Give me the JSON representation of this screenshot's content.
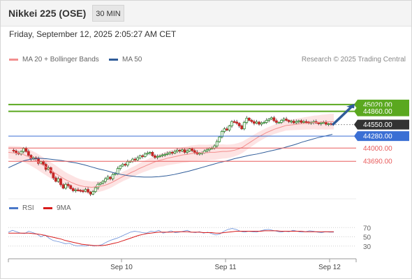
{
  "header": {
    "title": "Nikkei 225 (OSE)",
    "timeframe": "30 MIN"
  },
  "datetime": "Friday, September 12, 2025 2:05:27 AM CET",
  "legend": {
    "ma20": "MA 20 + Bollinger Bands",
    "ma50": "MA 50",
    "rsi": "RSI",
    "ma9": "9MA"
  },
  "credit": "Research © 2025 Trading Central",
  "colors": {
    "target": "#5aa81f",
    "pivot": "#3b6fd4",
    "support": "#e85c5c",
    "current": "#333333",
    "ma20": "#f28f8f",
    "ma50": "#2f5c99",
    "band": "#fde0e0",
    "up": "#2d8a2d",
    "down": "#c62828"
  },
  "chart_data": {
    "type": "candlestick",
    "levels": [
      {
        "value": 45020,
        "label": "45020.00",
        "kind": "target"
      },
      {
        "value": 44860,
        "label": "44860.00",
        "kind": "target"
      },
      {
        "value": 44550,
        "label": "44550.00",
        "kind": "current"
      },
      {
        "value": 44280,
        "label": "44280.00",
        "kind": "pivot"
      },
      {
        "value": 44000,
        "label": "44000.00",
        "kind": "support"
      },
      {
        "value": 43690,
        "label": "43690.00",
        "kind": "support"
      }
    ],
    "ylim": [
      42860,
      45900
    ],
    "x_ticks": [
      "Sep 10",
      "Sep 11",
      "Sep 12"
    ],
    "close": [
      43950,
      43930,
      43880,
      43860,
      43920,
      43990,
      43920,
      43830,
      43740,
      43770,
      43750,
      43640,
      43680,
      43620,
      43500,
      43540,
      43420,
      43300,
      43220,
      43280,
      43140,
      43060,
      43150,
      43120,
      43050,
      43000,
      43020,
      43010,
      43000,
      42990,
      43030,
      42970,
      42920,
      42980,
      43070,
      43150,
      43180,
      43220,
      43280,
      43320,
      43280,
      43380,
      43400,
      43520,
      43580,
      43620,
      43600,
      43680,
      43690,
      43740,
      43720,
      43770,
      43820,
      43800,
      43860,
      43880,
      43900,
      43820,
      43780,
      43800,
      43820,
      43840,
      43850,
      43870,
      43900,
      43880,
      43920,
      43950,
      43930,
      43960,
      43900,
      43930,
      43980,
      43940,
      43900,
      43860,
      43880,
      43890,
      43930,
      43960,
      43990,
      44000,
      44050,
      44150,
      44260,
      44390,
      44450,
      44420,
      44520,
      44620,
      44610,
      44580,
      44520,
      44450,
      44600,
      44700,
      44650,
      44620,
      44580,
      44610,
      44560,
      44590,
      44600,
      44650,
      44680,
      44710,
      44640,
      44600,
      44600,
      44650,
      44680,
      44650,
      44620,
      44630,
      44590,
      44620,
      44640,
      44600,
      44620,
      44610,
      44580,
      44600,
      44620,
      44590,
      44570,
      44590,
      44600,
      44560,
      44570,
      44550
    ],
    "ma20": [
      43900,
      43890,
      43880,
      43870,
      43840,
      43800,
      43750,
      43700,
      43640,
      43580,
      43520,
      43460,
      43400,
      43340,
      43280,
      43230,
      43190,
      43150,
      43120,
      43100,
      43090,
      43080,
      43090,
      43100,
      43120,
      43150,
      43190,
      43240,
      43290,
      43340,
      43380,
      43430,
      43470,
      43520,
      43560,
      43600,
      43640,
      43680,
      43710,
      43730,
      43760,
      43780,
      43800,
      43820,
      43840,
      43850,
      43870,
      43880,
      43890,
      43890,
      43890,
      43900,
      43900,
      43910,
      43920,
      43920,
      43930,
      43950,
      43980,
      44020,
      44080,
      44140,
      44200,
      44260,
      44310,
      44360,
      44400,
      44440,
      44470,
      44500,
      44530,
      44540,
      44550,
      44560,
      44570,
      44580,
      44590,
      44600,
      44600,
      44610,
      44610,
      44620,
      44620
    ],
    "ma50": [
      43540,
      43620,
      43700,
      43740,
      43760,
      43750,
      43730,
      43710,
      43680,
      43650,
      43610,
      43560,
      43510,
      43470,
      43420,
      43380,
      43350,
      43330,
      43320,
      43320,
      43330,
      43350,
      43380,
      43420,
      43460,
      43510,
      43560,
      43610,
      43660,
      43700,
      43750,
      43790,
      43830,
      43860,
      43900,
      43940,
      43980,
      44030,
      44080,
      44140,
      44190,
      44240,
      44280,
      44320
    ],
    "rsi": [
      60,
      64,
      61,
      58,
      57,
      62,
      59,
      56,
      50,
      54,
      47,
      42,
      40,
      38,
      35,
      36,
      32,
      30,
      31,
      30,
      32,
      30,
      31,
      33,
      38,
      42,
      45,
      48,
      52,
      56,
      60,
      62,
      61,
      59,
      58,
      62,
      61,
      64,
      58,
      60,
      63,
      59,
      60,
      62,
      64,
      60,
      59,
      61,
      58,
      60,
      57,
      54,
      56,
      62,
      66,
      68,
      66,
      62,
      60,
      62,
      61,
      60,
      63,
      65,
      66,
      64,
      62,
      60,
      62,
      61,
      64,
      62,
      60,
      61,
      63,
      62,
      60,
      59,
      61,
      60,
      60
    ],
    "ma9": [
      58,
      58,
      58,
      58,
      58,
      58,
      57,
      56,
      55,
      53,
      51,
      49,
      47,
      45,
      42,
      40,
      38,
      36,
      34,
      33,
      32,
      31,
      31,
      31,
      32,
      34,
      36,
      38,
      41,
      44,
      47,
      50,
      53,
      55,
      57,
      58,
      59,
      60,
      60,
      60,
      60,
      61,
      61,
      61,
      61,
      60,
      60,
      60,
      59,
      59,
      59,
      58,
      58,
      59,
      60,
      61,
      62,
      62,
      62,
      62,
      62,
      62,
      62,
      63,
      63,
      63,
      63,
      62,
      62,
      62,
      62,
      62,
      62,
      61,
      61,
      61,
      61,
      61,
      61,
      61,
      61
    ],
    "rsi_ticks": [
      "70",
      "50",
      "30"
    ]
  }
}
